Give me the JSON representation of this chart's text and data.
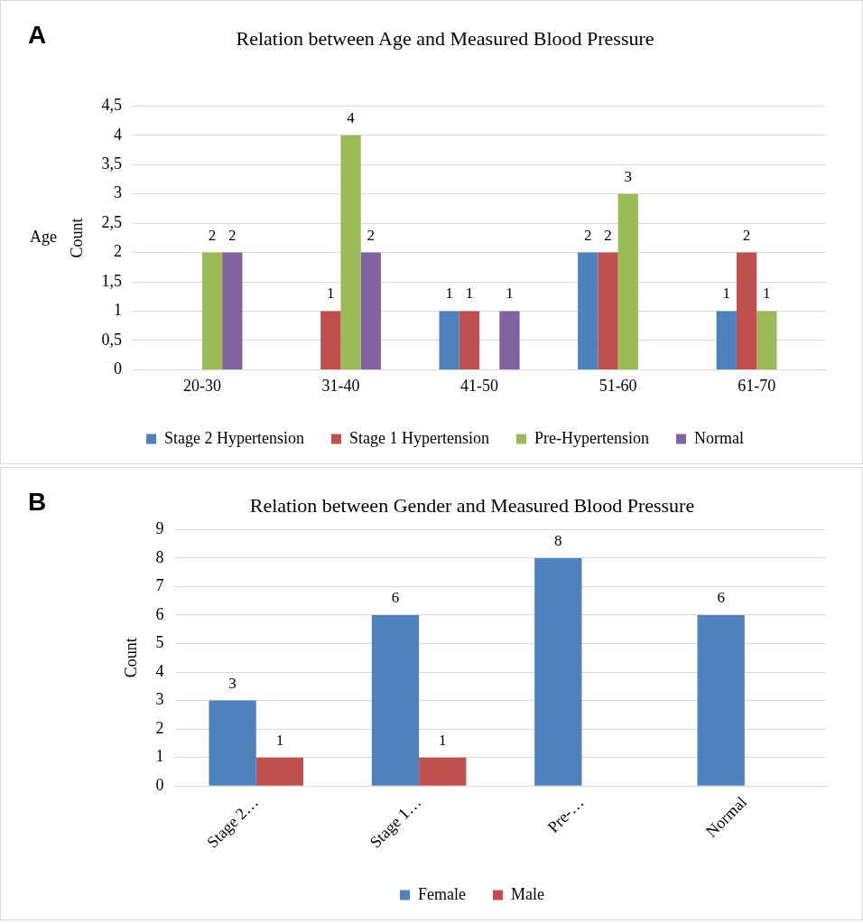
{
  "chart_data": [
    {
      "type": "bar",
      "title": "Relation between Age and Measured Blood Pressure",
      "ylabel": "Count",
      "annotations": [
        "A",
        "Age"
      ],
      "categories": [
        "20-30",
        "31-40",
        "41-50",
        "51-60",
        "61-70"
      ],
      "series": [
        {
          "name": "Stage 2 Hypertension",
          "color": "#4f81bd",
          "values": [
            null,
            null,
            1,
            2,
            1
          ]
        },
        {
          "name": "Stage 1 Hypertension",
          "color": "#c0504d",
          "values": [
            null,
            1,
            1,
            2,
            2
          ]
        },
        {
          "name": "Pre-Hypertension",
          "color": "#9bbb59",
          "values": [
            2,
            4,
            null,
            3,
            1
          ]
        },
        {
          "name": "Normal",
          "color": "#8064a2",
          "values": [
            2,
            2,
            1,
            null,
            null
          ]
        }
      ],
      "ylim": [
        0,
        4.5
      ],
      "yticks": [
        0,
        {
          "value": 0.5,
          "label": "0,5"
        },
        1,
        {
          "value": 1.5,
          "label": "1,5"
        },
        2,
        {
          "value": 2.5,
          "label": "2,5"
        },
        3,
        {
          "value": 3.5,
          "label": "3,5"
        },
        4,
        {
          "value": 4.5,
          "label": "4,5"
        }
      ],
      "grid": "y",
      "legend": "bottom",
      "data_labels": true
    },
    {
      "type": "bar",
      "title": "Relation between Gender and Measured Blood Pressure",
      "ylabel": "Count",
      "annotations": [
        "B"
      ],
      "categories": [
        "Stage 2…",
        "Stage 1…",
        "Pre-…",
        "Normal"
      ],
      "series": [
        {
          "name": "Female",
          "color": "#4f81bd",
          "values": [
            3,
            6,
            8,
            6
          ]
        },
        {
          "name": "Male",
          "color": "#c0504d",
          "values": [
            1,
            1,
            null,
            null
          ]
        }
      ],
      "ylim": [
        0,
        9
      ],
      "yticks": [
        0,
        1,
        2,
        3,
        4,
        5,
        6,
        7,
        8,
        9
      ],
      "grid": "y",
      "legend": "bottom",
      "data_labels": true
    }
  ]
}
